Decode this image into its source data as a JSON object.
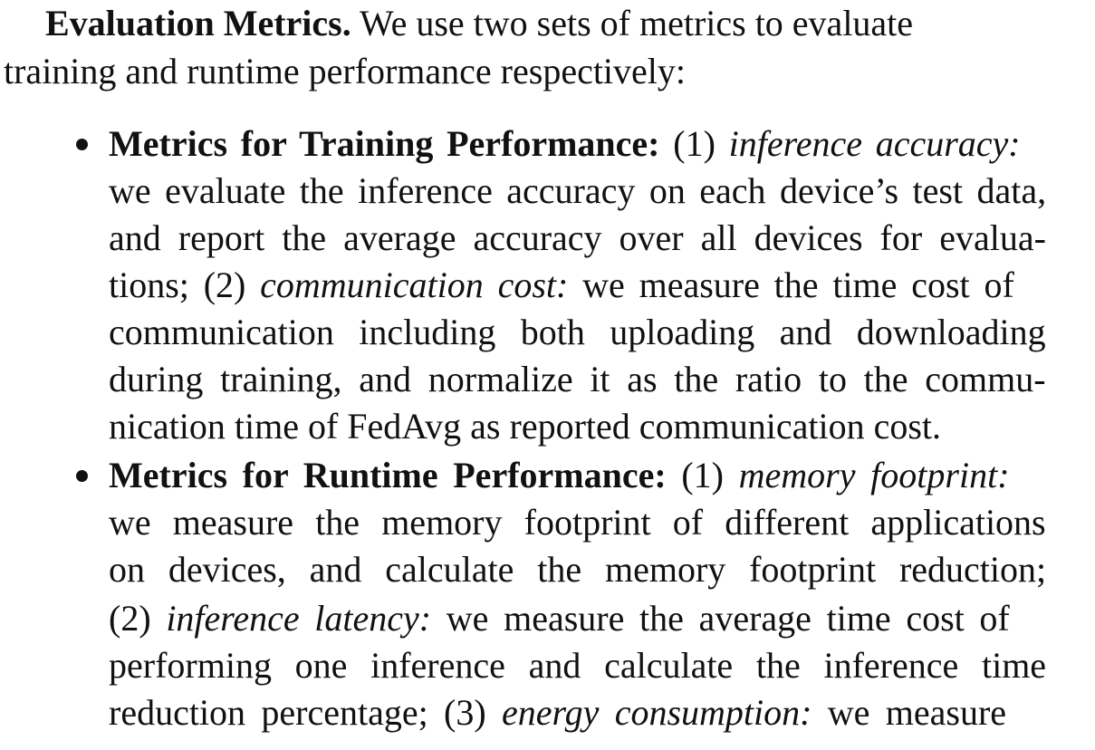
{
  "paragraph": {
    "heading": "Evaluation Metrics.",
    "line1_rest": " We use two sets of metrics to evaluate",
    "line2": "training and runtime performance respectively:"
  },
  "bullets": [
    {
      "title": "Metrics for Training Performance:",
      "l1_num": " (1) ",
      "l1_term": "inference accuracy:",
      "l2": "we evaluate the inference accuracy on each device’s test data,",
      "l3": "and report the average accuracy over all devices for evalua-",
      "l4_a": "tions; (2) ",
      "l4_term": "communication cost:",
      "l4_b": " we measure the time cost of",
      "l5": "communication including both uploading and downloading",
      "l6": "during training, and normalize it as the ratio to the commu-",
      "l7": "nication time of FedAvg as reported communication cost."
    },
    {
      "title": "Metrics for Runtime Performance:",
      "l1_num": " (1) ",
      "l1_term": "memory footprint:",
      "l2": "we measure the memory footprint of different applications",
      "l3": "on devices, and calculate the memory footprint reduction;",
      "l4_a": "(2) ",
      "l4_term": "inference latency:",
      "l4_b": " we measure the average time cost of",
      "l5": "performing one inference and calculate the inference time",
      "l6_a": "reduction percentage; (3) ",
      "l6_term": "energy consumption:",
      "l6_b": " we measure"
    }
  ]
}
